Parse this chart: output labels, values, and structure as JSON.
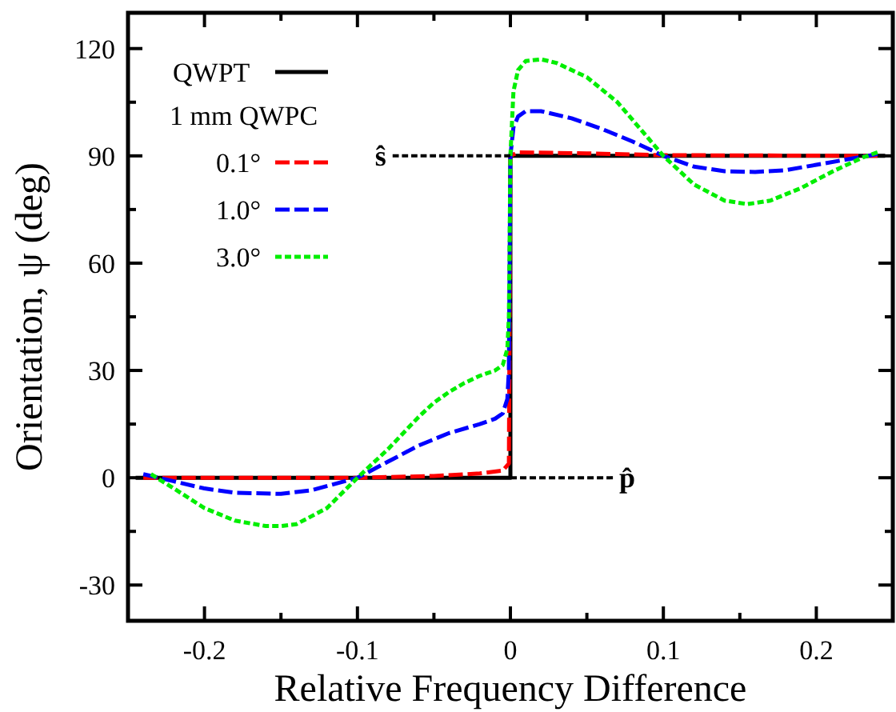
{
  "chart_data": {
    "type": "line",
    "xlabel": "Relative Frequency Difference",
    "ylabel": "Orientation, ψ (deg)",
    "legend_title": "1 mm QWPC",
    "legend": "top left",
    "grid": false,
    "xlim": [
      -0.25,
      0.25
    ],
    "ylim": [
      -40,
      130
    ],
    "xticks": [
      -0.2,
      {
        "value": -0.15,
        "label": null
      },
      -0.1,
      {
        "value": -0.05,
        "label": null
      },
      0,
      {
        "value": 0.05,
        "label": null
      },
      0.1,
      {
        "value": 0.15,
        "label": null
      },
      0.2
    ],
    "yticks": [
      -30,
      {
        "value": -15,
        "label": null
      },
      0,
      {
        "value": 15,
        "label": null
      },
      30,
      {
        "value": 45,
        "label": null
      },
      60,
      {
        "value": 75,
        "label": null
      },
      90,
      {
        "value": 105,
        "label": null
      },
      120
    ],
    "annotations": [
      {
        "text": "ŝ",
        "x": -0.077,
        "y": 90
      },
      {
        "text": "p̂",
        "x": 0.067,
        "y": 0
      }
    ],
    "series": [
      {
        "name": "QWPT",
        "color": "#000000",
        "line_style": "solid",
        "x": [
          -0.245,
          0,
          0,
          0.245
        ],
        "values": [
          0,
          0,
          90,
          90
        ]
      },
      {
        "name": "0.1°",
        "color": "#ff0000",
        "line_style": "dashed",
        "x": [
          -0.24,
          -0.1,
          -0.05,
          -0.02,
          -0.005,
          -0.001,
          0,
          0.005,
          0.05,
          0.1,
          0.24
        ],
        "values": [
          0,
          0,
          0.5,
          1.2,
          2,
          4,
          90,
          91,
          90.7,
          90.2,
          90
        ]
      },
      {
        "name": "1.0°",
        "color": "#0000ff",
        "line_style": "dashed",
        "x": [
          -0.24,
          -0.22,
          -0.2,
          -0.18,
          -0.15,
          -0.13,
          -0.1,
          -0.08,
          -0.06,
          -0.04,
          -0.02,
          -0.01,
          -0.005,
          -0.002,
          -0.001,
          0,
          0.002,
          0.005,
          0.01,
          0.02,
          0.04,
          0.06,
          0.08,
          0.1,
          0.12,
          0.14,
          0.16,
          0.18,
          0.2,
          0.22,
          0.24
        ],
        "values": [
          1,
          -1,
          -3,
          -4.2,
          -4.5,
          -3.5,
          0,
          4.5,
          9,
          12.5,
          15,
          16.5,
          18,
          22,
          30,
          90,
          98,
          101,
          102.5,
          102.5,
          100.5,
          97.5,
          94,
          90,
          87,
          85.7,
          85.5,
          86,
          87.5,
          89,
          90.5
        ]
      },
      {
        "name": "3.0°",
        "color": "#00ee00",
        "line_style": "dotted",
        "x": [
          -0.235,
          -0.22,
          -0.2,
          -0.18,
          -0.16,
          -0.15,
          -0.14,
          -0.12,
          -0.1,
          -0.08,
          -0.06,
          -0.05,
          -0.04,
          -0.03,
          -0.02,
          -0.01,
          -0.005,
          -0.002,
          -0.001,
          0,
          0.002,
          0.005,
          0.01,
          0.02,
          0.03,
          0.05,
          0.07,
          0.09,
          0.1,
          0.12,
          0.14,
          0.155,
          0.17,
          0.19,
          0.21,
          0.23,
          0.24
        ],
        "values": [
          1,
          -3,
          -8.5,
          -12,
          -13.5,
          -13.5,
          -13,
          -8.5,
          0,
          8,
          17,
          21,
          24,
          26.5,
          28.5,
          30,
          31.5,
          36,
          45,
          90,
          108,
          114,
          116.5,
          117,
          116,
          112,
          105,
          95,
          90,
          82,
          77.5,
          76.5,
          77.5,
          81,
          85.5,
          89.5,
          91
        ]
      },
      {
        "color": "#000000",
        "line_style": "dotted",
        "x": [
          -0.077,
          0
        ],
        "values": [
          90,
          90
        ]
      },
      {
        "color": "#000000",
        "line_style": "dotted",
        "x": [
          0,
          0.067
        ],
        "values": [
          0,
          0
        ]
      }
    ]
  }
}
